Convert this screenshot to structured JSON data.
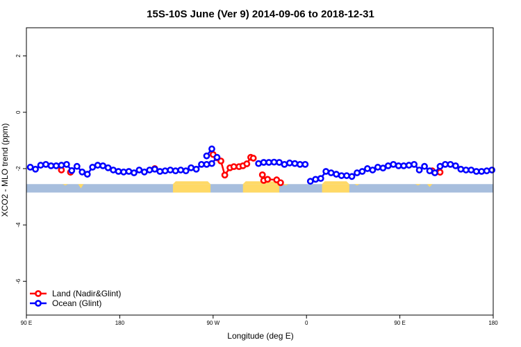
{
  "chart_data": {
    "type": "line",
    "title": "15S-10S June (Ver 9)   2014-09-06 to 2018-12-31",
    "xlabel": "Longitude (deg E)",
    "ylabel": "XCO2 - MLO trend (ppm)",
    "xlim": [
      90,
      450
    ],
    "ylim": [
      -7.2,
      3.0
    ],
    "x_ticks": [
      {
        "value": 90,
        "label": "90 E"
      },
      {
        "value": 162,
        "label": "180"
      },
      {
        "value": 234,
        "label": "90 W"
      },
      {
        "value": 306,
        "label": "0"
      },
      {
        "value": 378,
        "label": "90 E"
      },
      {
        "value": 450,
        "label": "180"
      }
    ],
    "y_ticks": [
      {
        "value": 2,
        "label": "2"
      },
      {
        "value": 0,
        "label": "0"
      },
      {
        "value": -2,
        "label": "-2"
      },
      {
        "value": -4,
        "label": "-4"
      },
      {
        "value": -6,
        "label": "-6"
      }
    ],
    "land_mask": {
      "color_land": "#FFD966",
      "color_ocean": "#A7BEDD",
      "y_range": [
        -2.85,
        -2.55
      ],
      "land_intervals": [
        [
          257,
          285
        ],
        [
          318,
          339
        ],
        [
          203,
          232
        ]
      ],
      "spikes": [
        [
          120,
          2.6
        ],
        [
          132,
          2.7
        ],
        [
          392,
          2.6
        ],
        [
          401,
          2.65
        ],
        [
          290,
          2.6
        ],
        [
          345,
          2.6
        ]
      ]
    },
    "series": [
      {
        "name": "Land (Nadir&Glint)",
        "color": "#FF0000",
        "x": [
          117,
          124,
          189,
          234,
          237,
          240,
          243,
          247,
          250,
          254,
          257,
          260,
          263,
          265,
          272,
          273,
          276,
          283,
          286,
          403,
          409
        ],
        "y": [
          -2.05,
          -2.13,
          -2.0,
          -1.5,
          -1.62,
          -1.73,
          -2.23,
          -1.97,
          -1.93,
          -1.93,
          -1.9,
          -1.83,
          -1.6,
          -1.63,
          -2.22,
          -2.42,
          -2.38,
          -2.4,
          -2.5,
          -2.08,
          -2.13
        ],
        "segments": [
          [
            3,
            4,
            5,
            6,
            7,
            8,
            9,
            10,
            11,
            12
          ],
          [
            14,
            15,
            16,
            17,
            18
          ]
        ]
      },
      {
        "name": "Ocean (Glint)",
        "color": "#0000FF",
        "x": [
          93,
          97,
          101,
          105,
          109,
          113,
          117,
          121,
          125,
          129,
          133,
          137,
          141,
          145,
          149,
          153,
          157,
          161,
          165,
          169,
          173,
          177,
          181,
          185,
          189,
          193,
          197,
          201,
          205,
          209,
          213,
          217,
          221,
          225,
          229,
          233,
          237,
          269,
          273,
          277,
          281,
          285,
          289,
          293,
          297,
          301,
          305,
          309,
          313,
          317,
          321,
          325,
          329,
          333,
          337,
          341,
          345,
          349,
          353,
          357,
          361,
          365,
          369,
          373,
          377,
          381,
          385,
          389,
          393,
          397,
          401,
          405,
          409,
          413,
          417,
          421,
          425,
          429,
          433,
          437,
          441,
          445,
          449
        ],
        "y": [
          -1.95,
          -2.02,
          -1.88,
          -1.85,
          -1.9,
          -1.9,
          -1.88,
          -1.85,
          -2.07,
          -1.92,
          -2.12,
          -2.2,
          -1.95,
          -1.88,
          -1.9,
          -1.97,
          -2.05,
          -2.1,
          -2.12,
          -2.1,
          -2.15,
          -2.05,
          -2.12,
          -2.05,
          -2.02,
          -2.1,
          -2.08,
          -2.05,
          -2.08,
          -2.05,
          -2.08,
          -1.97,
          -2.02,
          -1.85,
          -1.85,
          -1.82,
          -1.6,
          -1.82,
          -1.78,
          -1.78,
          -1.77,
          -1.78,
          -1.85,
          -1.8,
          -1.82,
          -1.85,
          -1.85,
          -2.45,
          -2.38,
          -2.35,
          -2.1,
          -2.15,
          -2.2,
          -2.25,
          -2.25,
          -2.28,
          -2.15,
          -2.1,
          -2.0,
          -2.05,
          -1.95,
          -1.98,
          -1.9,
          -1.85,
          -1.9,
          -1.9,
          -1.88,
          -1.85,
          -2.05,
          -1.92,
          -2.08,
          -2.15,
          -1.92,
          -1.85,
          -1.85,
          -1.9,
          -2.02,
          -2.05,
          -2.05,
          -2.1,
          -2.1,
          -2.08,
          -2.05
        ]
      }
    ],
    "ocean_extra_points": {
      "x": [
        229,
        233
      ],
      "y": [
        -1.55,
        -1.3
      ]
    },
    "legend": {
      "placement": "bottom-left",
      "entries": [
        "Land (Nadir&Glint)",
        "Ocean (Glint)"
      ]
    },
    "grid": false
  }
}
